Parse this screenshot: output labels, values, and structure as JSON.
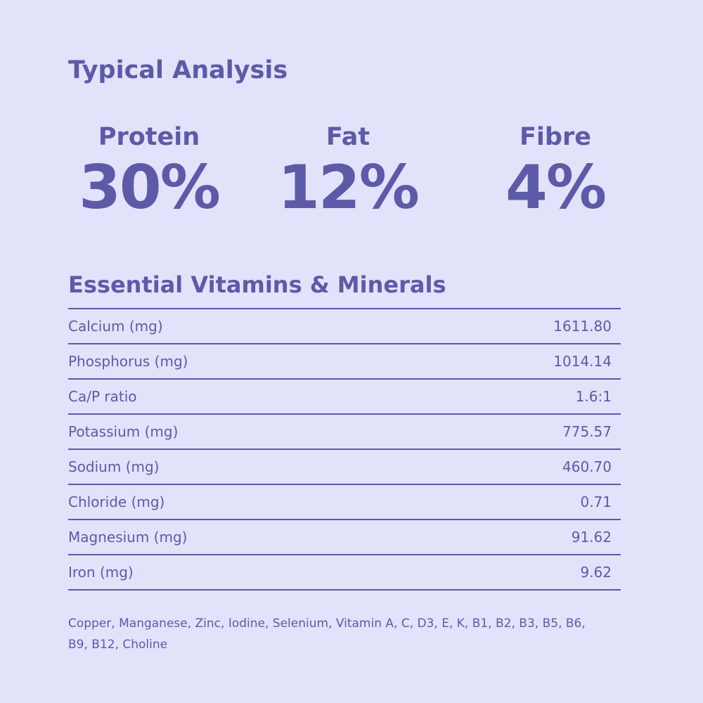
{
  "title": "Typical Analysis",
  "macros": [
    {
      "label": "Protein",
      "value": "30%"
    },
    {
      "label": "Fat",
      "value": "12%"
    },
    {
      "label": "Fibre",
      "value": "4%"
    }
  ],
  "vitamins_title": "Essential Vitamins & Minerals",
  "table": {
    "rows": [
      [
        "Calcium (mg)",
        "1611.80"
      ],
      [
        "Phosphorus (mg)",
        "1014.14"
      ],
      [
        "Ca/P ratio",
        "1.6:1"
      ],
      [
        "Potassium (mg)",
        "775.57"
      ],
      [
        "Sodium (mg)",
        "460.70"
      ],
      [
        "Chloride (mg)",
        "0.71"
      ],
      [
        "Magnesium (mg)",
        "91.62"
      ],
      [
        "Iron (mg)",
        "9.62"
      ]
    ]
  },
  "footnote": "Copper, Manganese, Zinc, Iodine, Selenium, Vitamin A, C, D3, E, K, B1, B2, B3, B5, B6, B9, B12, Choline"
}
